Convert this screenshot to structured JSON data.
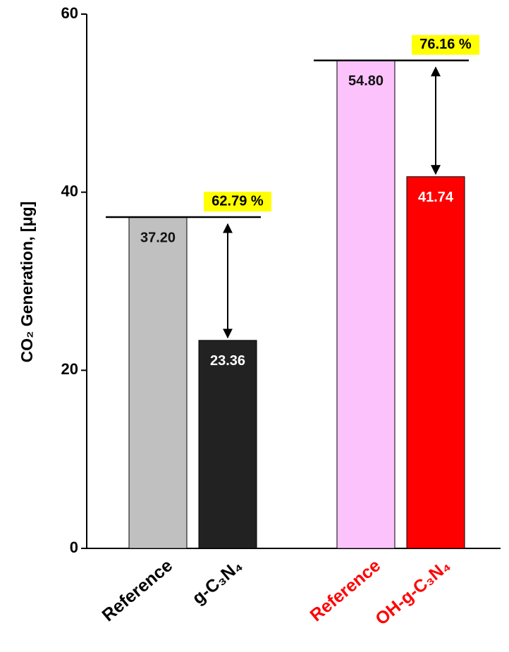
{
  "chart_data": {
    "type": "bar",
    "y_label": "CO₂ Generation, [μg]",
    "categories": [
      "Reference",
      "g-C₃N₄",
      "Reference",
      "OH-g-C₃N₄"
    ],
    "category_colors": [
      "#000000",
      "#000000",
      "#ff0000",
      "#ff0000"
    ],
    "values": [
      37.2,
      23.36,
      54.8,
      41.74
    ],
    "value_labels": [
      "37.20",
      "23.36",
      "54.80",
      "41.74"
    ],
    "colors": [
      "#c0c0c0",
      "#222222",
      "#fbc2fb",
      "#ff0000"
    ],
    "annotations": [
      "62.79 %",
      "76.16 %"
    ],
    "annotation_color": "#ffff00",
    "ylim": [
      0,
      60
    ],
    "yticks": [
      0,
      20,
      40,
      60
    ]
  }
}
